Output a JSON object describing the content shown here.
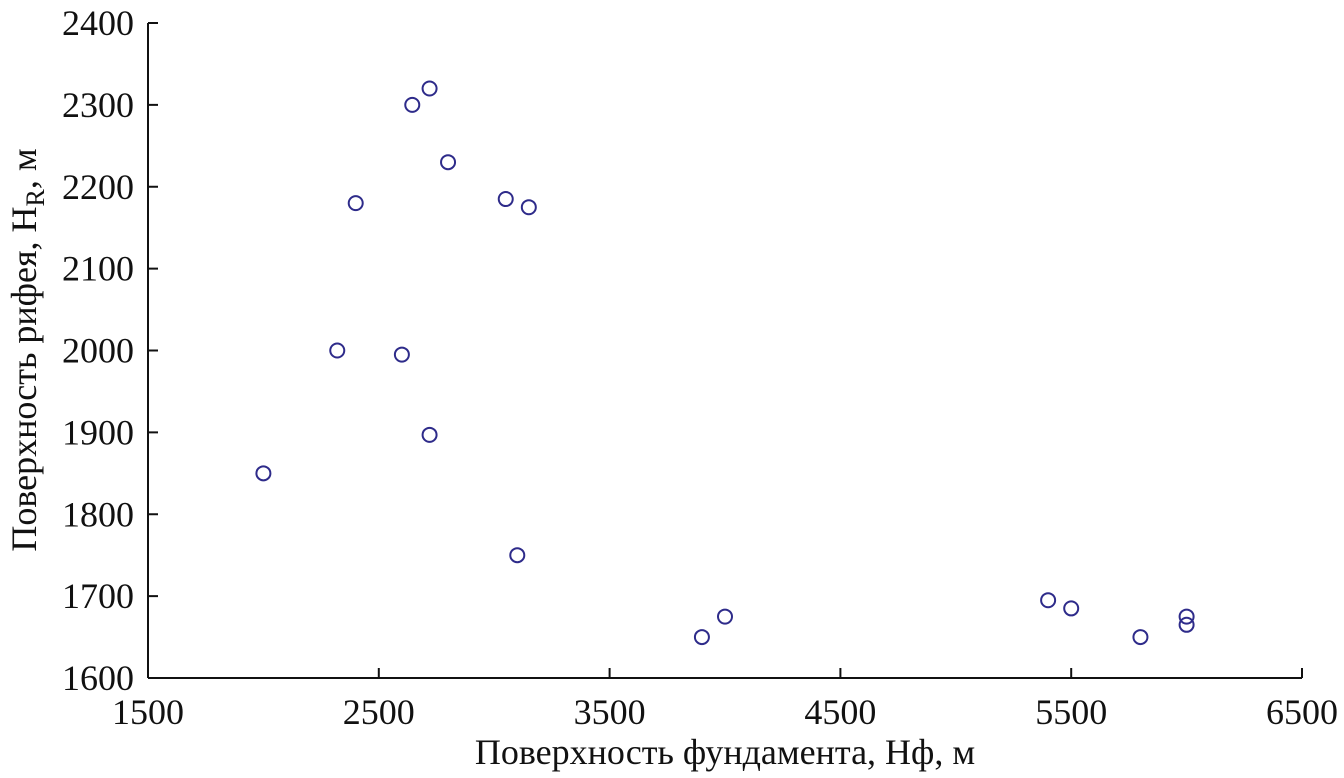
{
  "chart_data": {
    "type": "scatter",
    "x_label": "Поверхность фундамента, Нф, м",
    "y_label": {
      "main": "Поверхность рифея, H",
      "subscript": "R",
      "suffix": ", м"
    },
    "series": [
      {
        "color": "#2e2b8a",
        "x": [
          2000,
          2320,
          2400,
          2600,
          2645,
          2720,
          2720,
          2800,
          3050,
          3150,
          3100,
          3900,
          4000,
          5400,
          5500,
          5800,
          6000,
          6000
        ],
        "values": [
          1850,
          2000,
          2180,
          1995,
          2300,
          2320,
          1897,
          2230,
          2185,
          2175,
          1750,
          1650,
          1675,
          1695,
          1685,
          1650,
          1675,
          1665
        ]
      }
    ],
    "xlim": [
      1500,
      6500
    ],
    "xticks": [
      1500,
      2500,
      3500,
      4500,
      5500,
      6500
    ],
    "ylim": [
      1600,
      2400
    ],
    "yticks": [
      1600,
      1700,
      1800,
      1900,
      2000,
      2100,
      2200,
      2300,
      2400
    ]
  }
}
